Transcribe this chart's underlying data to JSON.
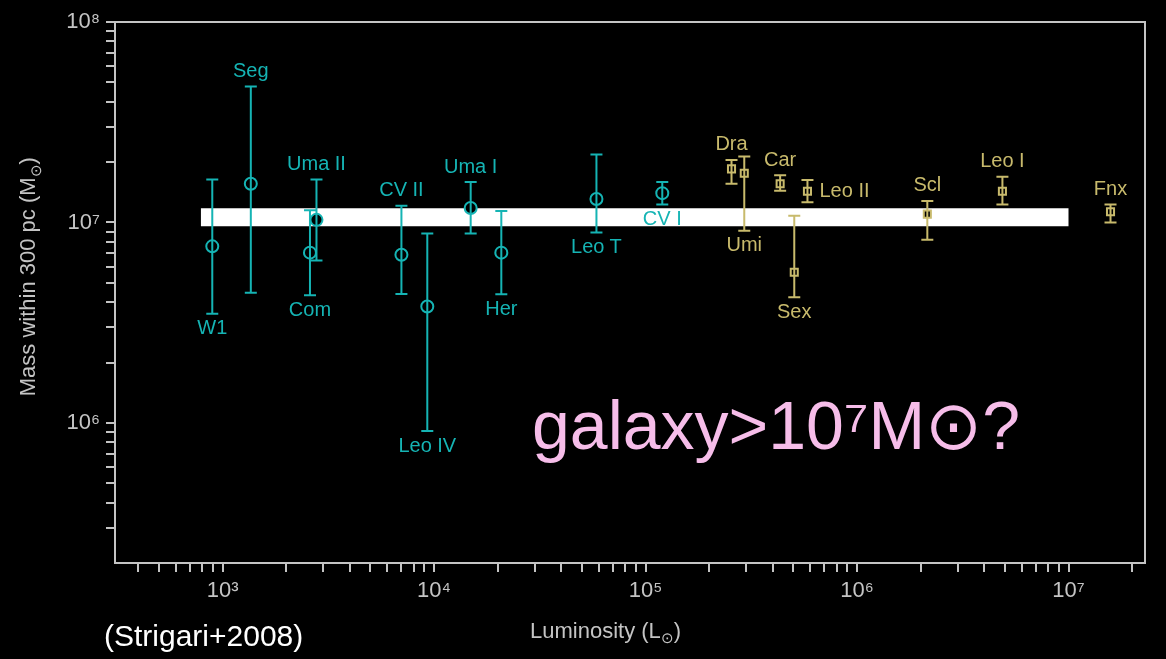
{
  "chart_data": {
    "type": "scatter",
    "xlabel": "Luminosity (L$_{⊙}$)",
    "ylabel": "Mass within 300 pc (M$_{⊙}$)",
    "log": "xy",
    "grid": false,
    "legend": false,
    "xlim": [
      310,
      23000000
    ],
    "ylim": [
      200000,
      100000000
    ],
    "xticks": [
      {
        "value": 400,
        "label": null
      },
      {
        "value": 500,
        "label": null
      },
      {
        "value": 600,
        "label": null
      },
      {
        "value": 700,
        "label": null
      },
      {
        "value": 800,
        "label": null
      },
      {
        "value": 900,
        "label": null
      },
      {
        "value": 1000,
        "label": "10³"
      },
      {
        "value": 2000,
        "label": null
      },
      {
        "value": 3000,
        "label": null
      },
      {
        "value": 4000,
        "label": null
      },
      {
        "value": 5000,
        "label": null
      },
      {
        "value": 6000,
        "label": null
      },
      {
        "value": 7000,
        "label": null
      },
      {
        "value": 8000,
        "label": null
      },
      {
        "value": 9000,
        "label": null
      },
      {
        "value": 10000,
        "label": "10⁴"
      },
      {
        "value": 20000,
        "label": null
      },
      {
        "value": 30000,
        "label": null
      },
      {
        "value": 40000,
        "label": null
      },
      {
        "value": 50000,
        "label": null
      },
      {
        "value": 60000,
        "label": null
      },
      {
        "value": 70000,
        "label": null
      },
      {
        "value": 80000,
        "label": null
      },
      {
        "value": 90000,
        "label": null
      },
      {
        "value": 100000,
        "label": "10⁵"
      },
      {
        "value": 200000,
        "label": null
      },
      {
        "value": 300000,
        "label": null
      },
      {
        "value": 400000,
        "label": null
      },
      {
        "value": 500000,
        "label": null
      },
      {
        "value": 600000,
        "label": null
      },
      {
        "value": 700000,
        "label": null
      },
      {
        "value": 800000,
        "label": null
      },
      {
        "value": 900000,
        "label": null
      },
      {
        "value": 1000000,
        "label": "10⁶"
      },
      {
        "value": 2000000,
        "label": null
      },
      {
        "value": 3000000,
        "label": null
      },
      {
        "value": 4000000,
        "label": null
      },
      {
        "value": 5000000,
        "label": null
      },
      {
        "value": 6000000,
        "label": null
      },
      {
        "value": 7000000,
        "label": null
      },
      {
        "value": 8000000,
        "label": null
      },
      {
        "value": 9000000,
        "label": null
      },
      {
        "value": 10000000,
        "label": "10⁷"
      },
      {
        "value": 20000000,
        "label": null
      }
    ],
    "yticks": [
      {
        "value": 300000,
        "label": null
      },
      {
        "value": 400000,
        "label": null
      },
      {
        "value": 500000,
        "label": null
      },
      {
        "value": 600000,
        "label": null
      },
      {
        "value": 700000,
        "label": null
      },
      {
        "value": 800000,
        "label": null
      },
      {
        "value": 900000,
        "label": null
      },
      {
        "value": 1000000,
        "label": "10⁶"
      },
      {
        "value": 2000000,
        "label": null
      },
      {
        "value": 3000000,
        "label": null
      },
      {
        "value": 4000000,
        "label": null
      },
      {
        "value": 5000000,
        "label": null
      },
      {
        "value": 6000000,
        "label": null
      },
      {
        "value": 7000000,
        "label": null
      },
      {
        "value": 8000000,
        "label": null
      },
      {
        "value": 9000000,
        "label": null
      },
      {
        "value": 10000000,
        "label": "10⁷"
      },
      {
        "value": 20000000,
        "label": null
      },
      {
        "value": 30000000,
        "label": null
      },
      {
        "value": 40000000,
        "label": null
      },
      {
        "value": 50000000,
        "label": null
      },
      {
        "value": 60000000,
        "label": null
      },
      {
        "value": 70000000,
        "label": null
      },
      {
        "value": 80000000,
        "label": null
      },
      {
        "value": 90000000,
        "label": null
      },
      {
        "value": 100000000,
        "label": "10⁸"
      }
    ],
    "series": [
      {
        "type": "line",
        "color": "#ffffff",
        "marker": "none",
        "x": [
          790,
          10000000
        ],
        "values": [
          10600000,
          10600000
        ]
      },
      {
        "color": "#15b4b4",
        "marker": "circle",
        "x": [
          894,
          1360,
          2780,
          2590,
          7010,
          9290,
          14900,
          20800,
          58600,
          120000
        ],
        "values": [
          7600000,
          15600000,
          10300000,
          7070000,
          6900000,
          3810000,
          11800000,
          7070000,
          13100000,
          14000000
        ],
        "errors": [
          [
            3500000,
            16400000
          ],
          [
            4460000,
            47700000
          ],
          [
            6460000,
            16400000
          ],
          [
            4330000,
            11500000
          ],
          [
            4400000,
            12100000
          ],
          [
            910000,
            8800000
          ],
          [
            8800000,
            15900000
          ],
          [
            4380000,
            11400000
          ],
          [
            8900000,
            21800000
          ],
          [
            12300000,
            15900000
          ]
        ]
      },
      {
        "color": "#c8ba6c",
        "marker": "square",
        "x": [
          255000,
          293000,
          433000,
          583000,
          505000,
          2150000,
          4870000,
          15800000
        ],
        "values": [
          18500000,
          17600000,
          15600000,
          14300000,
          5640000,
          11000000,
          14300000,
          11300000
        ],
        "errors": [
          [
            15600000,
            20500000
          ],
          [
            9100000,
            21300000
          ],
          [
            14400000,
            17200000
          ],
          [
            12600000,
            16300000
          ],
          [
            4230000,
            10800000
          ],
          [
            8200000,
            12800000
          ],
          [
            12300000,
            16900000
          ],
          [
            10000000,
            12300000
          ]
        ]
      }
    ],
    "annotations": [
      {
        "text": "Seg",
        "x": 1360,
        "y": 47700000
      },
      {
        "text": "W1",
        "x": 894,
        "y": 3500000
      },
      {
        "text": "Uma II",
        "x": 2780,
        "y": 16400000
      },
      {
        "text": "Com",
        "x": 2590,
        "y": 4330000
      },
      {
        "text": "CV II",
        "x": 7010,
        "y": 12100000
      },
      {
        "text": "Leo IV",
        "x": 9290,
        "y": 910000
      },
      {
        "text": "Uma I",
        "x": 14900,
        "y": 15900000
      },
      {
        "text": "Her",
        "x": 20800,
        "y": 4380000
      },
      {
        "text": "Leo T",
        "x": 58600,
        "y": 8900000
      },
      {
        "text": "CV I",
        "x": 120000,
        "y": 12300000
      },
      {
        "text": "Dra",
        "x": 255000,
        "y": 20500000
      },
      {
        "text": "Umi",
        "x": 293000,
        "y": 9100000
      },
      {
        "text": "Car",
        "x": 433000,
        "y": 17200000
      },
      {
        "text": "Leo II",
        "x": 583000,
        "y": 14300000
      },
      {
        "text": "Sex",
        "x": 505000,
        "y": 4230000
      },
      {
        "text": "Scl",
        "x": 2150000,
        "y": 12800000
      },
      {
        "text": "Leo I",
        "x": 4870000,
        "y": 16900000
      },
      {
        "text": "Fnx",
        "x": 15800000,
        "y": 12300000
      },
      "galaxy>10⁷M⊙?",
      "(Strigari+2008)"
    ]
  }
}
